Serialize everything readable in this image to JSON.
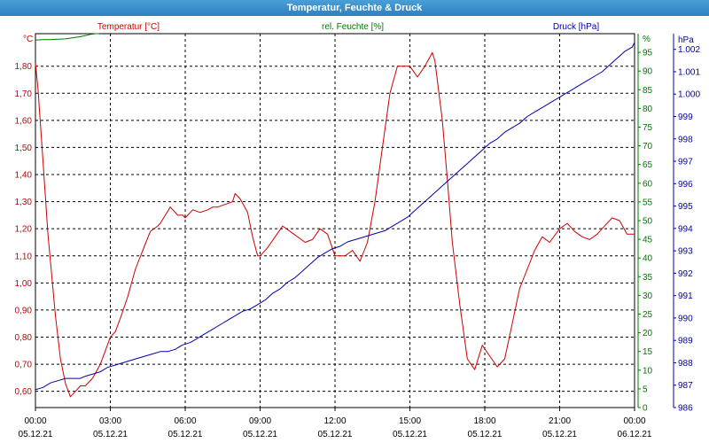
{
  "window": {
    "title": "Temperatur, Feuchte & Druck"
  },
  "colors": {
    "temperature": "#cc0000",
    "humidity": "#007700",
    "pressure": "#0000aa",
    "grid": "#000000",
    "titlebar": "#3a8fcb"
  },
  "chart_data": {
    "type": "line",
    "title": "Temperatur, Feuchte & Druck",
    "grid": true,
    "x_ticks": [
      {
        "time": "00:00",
        "date": "05.12.21"
      },
      {
        "time": "03:00",
        "date": "05.12.21"
      },
      {
        "time": "06:00",
        "date": "05.12.21"
      },
      {
        "time": "09:00",
        "date": "05.12.21"
      },
      {
        "time": "12:00",
        "date": "05.12.21"
      },
      {
        "time": "15:00",
        "date": "05.12.21"
      },
      {
        "time": "18:00",
        "date": "05.12.21"
      },
      {
        "time": "21:00",
        "date": "05.12.21"
      },
      {
        "time": "00:00",
        "date": "06.12.21"
      }
    ],
    "xlim": [
      0,
      24
    ],
    "axes": {
      "temperature": {
        "label": "Temperatur [°C]",
        "unit": "°C",
        "ylim": [
          0.54,
          1.92
        ],
        "ticks": [
          "0,60",
          "0,70",
          "0,80",
          "0,90",
          "1,00",
          "1,10",
          "1,20",
          "1,30",
          "1,40",
          "1,50",
          "1,60",
          "1,70",
          "1,80"
        ],
        "tick_values": [
          0.6,
          0.7,
          0.8,
          0.9,
          1.0,
          1.1,
          1.2,
          1.3,
          1.4,
          1.5,
          1.6,
          1.7,
          1.8
        ]
      },
      "humidity": {
        "label": "rel. Feuchte [%]",
        "unit": "%",
        "ylim": [
          0,
          100
        ],
        "ticks": [
          "0",
          "5",
          "10",
          "15",
          "20",
          "25",
          "30",
          "35",
          "40",
          "45",
          "50",
          "55",
          "60",
          "65",
          "70",
          "75",
          "80",
          "85",
          "90",
          "95"
        ],
        "tick_values": [
          0,
          5,
          10,
          15,
          20,
          25,
          30,
          35,
          40,
          45,
          50,
          55,
          60,
          65,
          70,
          75,
          80,
          85,
          90,
          95
        ]
      },
      "pressure": {
        "label": "Druck [hPa]",
        "unit": "hPa",
        "ylim": [
          986,
          1002.7
        ],
        "ticks": [
          "986",
          "987",
          "988",
          "989",
          "990",
          "991",
          "992",
          "993",
          "994",
          "995",
          "996",
          "997",
          "998",
          "999",
          "1.000",
          "1.001",
          "1.002"
        ],
        "tick_values": [
          986,
          987,
          988,
          989,
          990,
          991,
          992,
          993,
          994,
          995,
          996,
          997,
          998,
          999,
          1000,
          1001,
          1002
        ]
      }
    },
    "series": [
      {
        "name": "Temperatur [°C]",
        "axis": "temperature",
        "color": "#cc0000",
        "x": [
          0,
          0.1,
          0.3,
          0.5,
          0.8,
          1.0,
          1.2,
          1.4,
          1.6,
          1.8,
          2.0,
          2.3,
          2.6,
          2.8,
          3.0,
          3.2,
          3.4,
          3.7,
          4.0,
          4.3,
          4.6,
          4.9,
          5.0,
          5.2,
          5.4,
          5.7,
          5.9,
          6.0,
          6.3,
          6.6,
          6.9,
          7.1,
          7.3,
          7.6,
          7.9,
          8.0,
          8.2,
          8.5,
          8.7,
          8.9,
          9.0,
          9.3,
          9.6,
          9.9,
          10.2,
          10.5,
          10.8,
          11.1,
          11.4,
          11.7,
          12.0,
          12.4,
          12.7,
          13.0,
          13.3,
          13.6,
          13.9,
          14.2,
          14.5,
          14.8,
          15.0,
          15.3,
          15.6,
          15.9,
          16.0,
          16.3,
          16.5,
          16.7,
          17.0,
          17.3,
          17.6,
          17.9,
          18.2,
          18.5,
          18.8,
          19.1,
          19.4,
          19.7,
          20.0,
          20.3,
          20.6,
          21.0,
          21.3,
          21.6,
          21.9,
          22.2,
          22.5,
          22.8,
          23.1,
          23.4,
          23.7,
          24.0
        ],
        "values": [
          1.81,
          1.72,
          1.45,
          1.18,
          0.88,
          0.72,
          0.63,
          0.58,
          0.6,
          0.62,
          0.62,
          0.65,
          0.7,
          0.75,
          0.8,
          0.82,
          0.87,
          0.95,
          1.05,
          1.12,
          1.19,
          1.21,
          1.22,
          1.25,
          1.28,
          1.25,
          1.25,
          1.24,
          1.27,
          1.26,
          1.27,
          1.28,
          1.28,
          1.29,
          1.3,
          1.33,
          1.31,
          1.26,
          1.17,
          1.1,
          1.1,
          1.13,
          1.17,
          1.21,
          1.19,
          1.17,
          1.15,
          1.16,
          1.2,
          1.18,
          1.1,
          1.1,
          1.12,
          1.08,
          1.15,
          1.3,
          1.5,
          1.7,
          1.8,
          1.8,
          1.8,
          1.76,
          1.8,
          1.85,
          1.82,
          1.6,
          1.38,
          1.15,
          0.92,
          0.72,
          0.68,
          0.77,
          0.73,
          0.69,
          0.72,
          0.85,
          0.98,
          1.05,
          1.12,
          1.17,
          1.15,
          1.2,
          1.22,
          1.19,
          1.17,
          1.16,
          1.18,
          1.21,
          1.24,
          1.23,
          1.18,
          1.18
        ]
      },
      {
        "name": "rel. Feuchte [%]",
        "axis": "humidity",
        "color": "#007700",
        "x": [
          0,
          0.3,
          0.6,
          0.9,
          1.2,
          1.5,
          1.8,
          2.0,
          2.2,
          2.4,
          2.55
        ],
        "values": [
          98.3,
          98.4,
          98.4,
          98.5,
          98.6,
          98.9,
          99.2,
          99.5,
          99.8,
          100,
          100
        ]
      },
      {
        "name": "Druck [hPa]",
        "axis": "pressure",
        "color": "#0000aa",
        "x": [
          0,
          0.3,
          0.6,
          0.9,
          1.2,
          1.5,
          1.8,
          2.0,
          2.3,
          2.6,
          2.9,
          3.2,
          3.5,
          3.8,
          4.1,
          4.4,
          4.7,
          5.0,
          5.3,
          5.6,
          5.9,
          6.2,
          6.5,
          6.8,
          7.1,
          7.4,
          7.7,
          8.0,
          8.3,
          8.6,
          8.9,
          9.2,
          9.5,
          9.8,
          10.1,
          10.4,
          10.7,
          11.0,
          11.3,
          11.6,
          11.9,
          12.2,
          12.5,
          12.8,
          13.1,
          13.4,
          13.7,
          14.0,
          14.3,
          14.6,
          14.9,
          15.2,
          15.5,
          15.8,
          16.1,
          16.4,
          16.7,
          17.0,
          17.3,
          17.6,
          17.9,
          18.2,
          18.5,
          18.8,
          19.1,
          19.4,
          19.7,
          20.0,
          20.3,
          20.6,
          20.9,
          21.2,
          21.5,
          21.8,
          22.1,
          22.4,
          22.7,
          23.0,
          23.3,
          23.6,
          23.9,
          24.0
        ],
        "values": [
          986.8,
          986.9,
          987.1,
          987.2,
          987.3,
          987.3,
          987.3,
          987.4,
          987.5,
          987.6,
          987.8,
          987.9,
          988.0,
          988.1,
          988.2,
          988.3,
          988.4,
          988.5,
          988.5,
          988.6,
          988.8,
          988.9,
          989.1,
          989.3,
          989.5,
          989.7,
          989.9,
          990.1,
          990.3,
          990.4,
          990.6,
          990.8,
          991.1,
          991.3,
          991.6,
          991.8,
          992.1,
          992.4,
          992.7,
          992.9,
          993.1,
          993.2,
          993.4,
          993.5,
          993.6,
          993.7,
          993.8,
          993.9,
          994.1,
          994.3,
          994.5,
          994.8,
          995.1,
          995.4,
          995.7,
          996.0,
          996.3,
          996.6,
          996.9,
          997.2,
          997.5,
          997.8,
          998.0,
          998.3,
          998.5,
          998.7,
          999.0,
          999.2,
          999.4,
          999.6,
          999.8,
          1000.0,
          1000.2,
          1000.4,
          1000.6,
          1000.8,
          1001.0,
          1001.3,
          1001.6,
          1001.9,
          1002.1,
          1002.3
        ]
      }
    ]
  }
}
